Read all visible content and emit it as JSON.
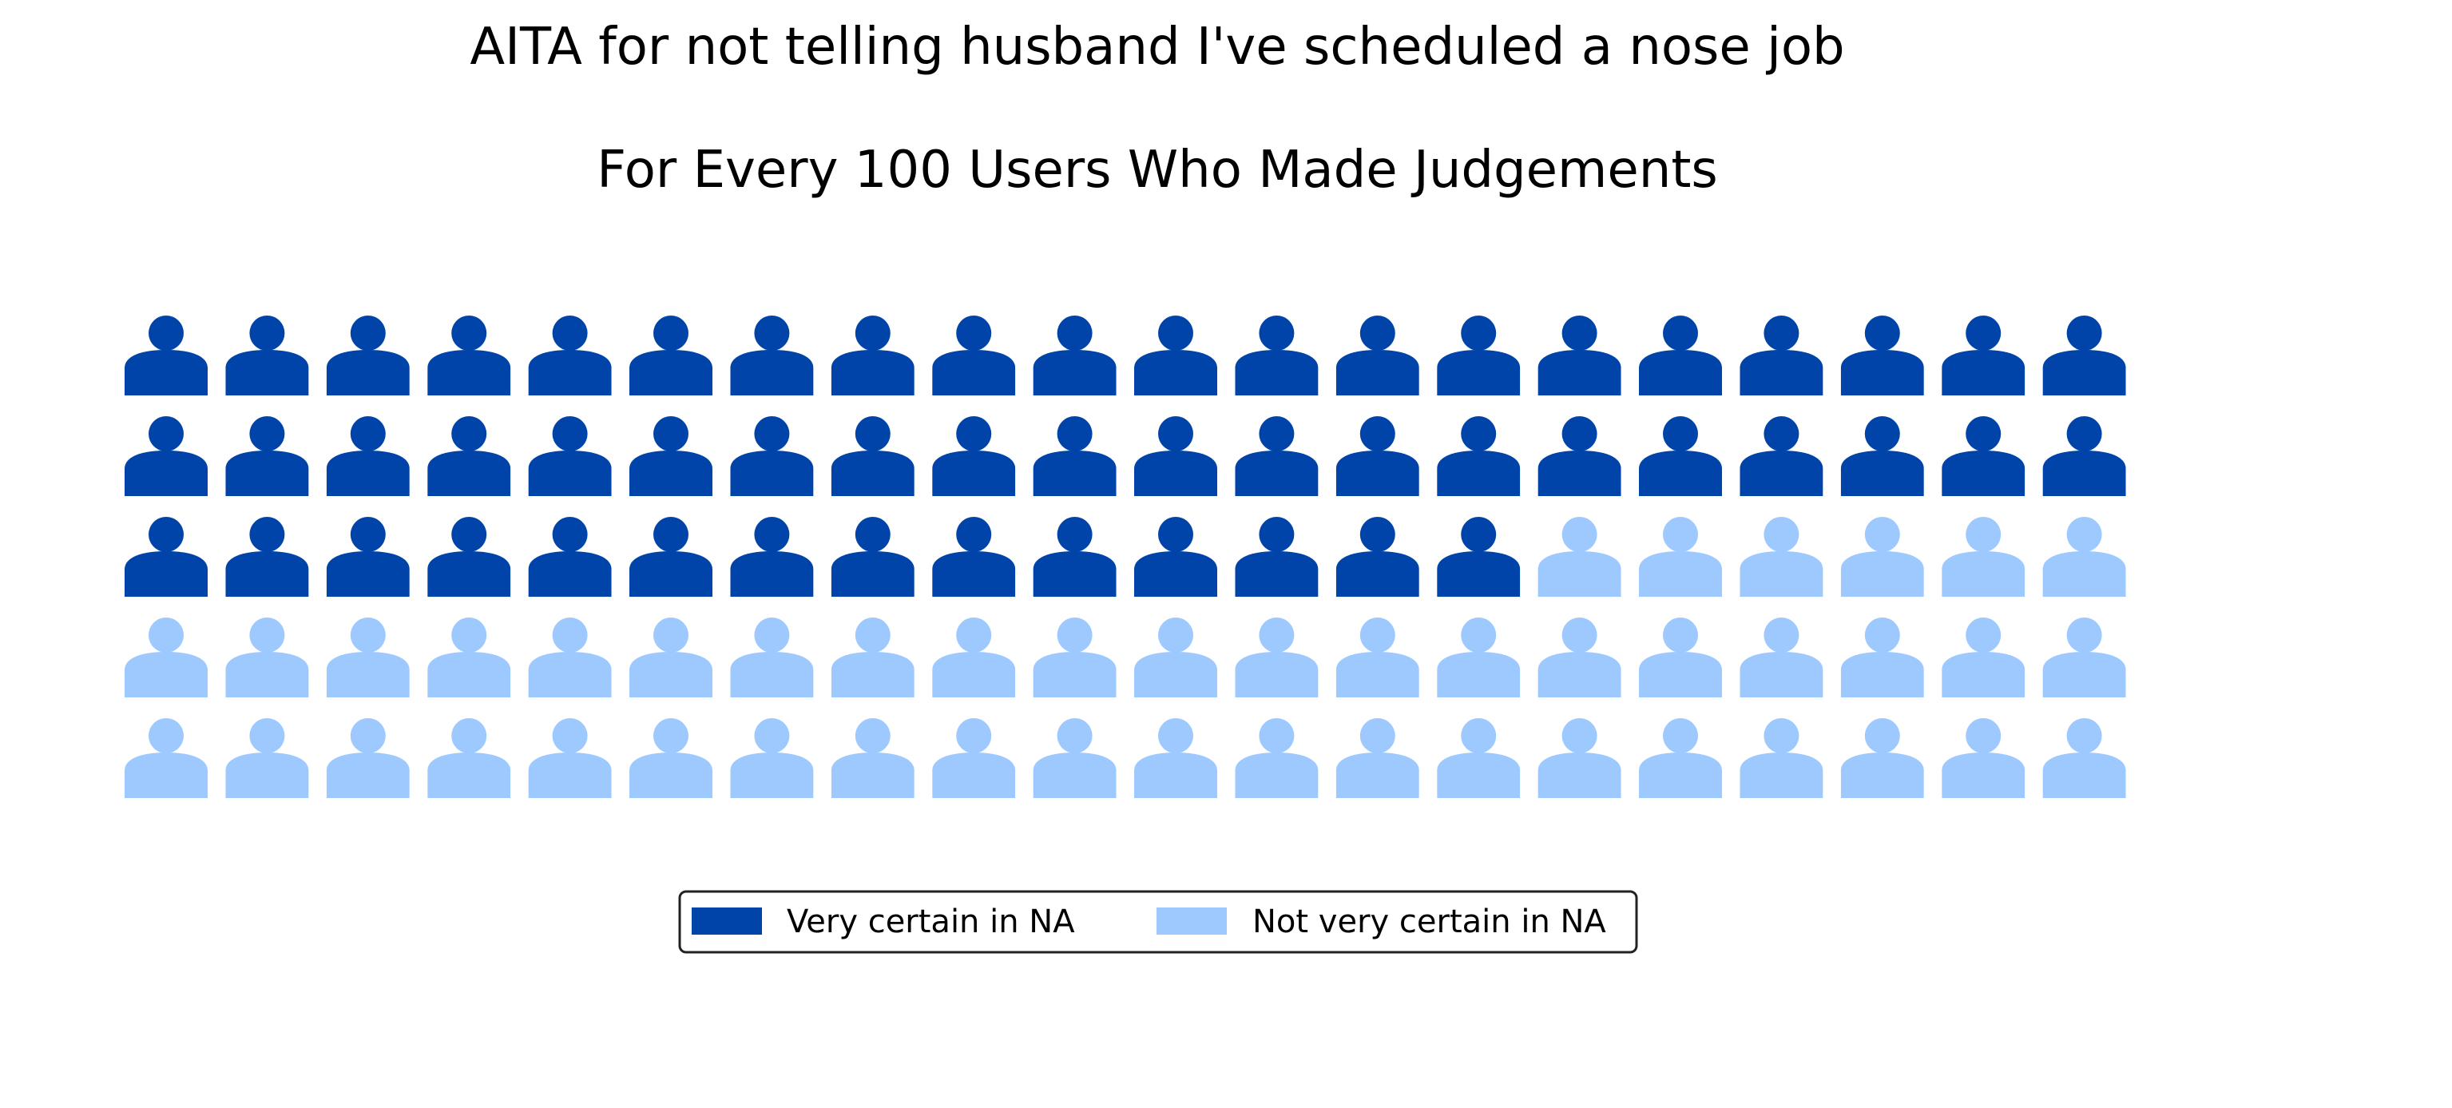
{
  "chart_data": {
    "type": "waffle",
    "title": "AITA for not telling husband I've scheduled a nose job",
    "subtitle": "For Every 100 Users Who Made Judgements",
    "total": 100,
    "rows": 5,
    "columns": 20,
    "icon": "person-icon",
    "categories": [
      "Very certain in NA",
      "Not very certain in NA"
    ],
    "values": [
      54,
      46
    ],
    "colors": [
      "#0044aa",
      "#9ec9ff"
    ],
    "legend_position": "bottom"
  }
}
